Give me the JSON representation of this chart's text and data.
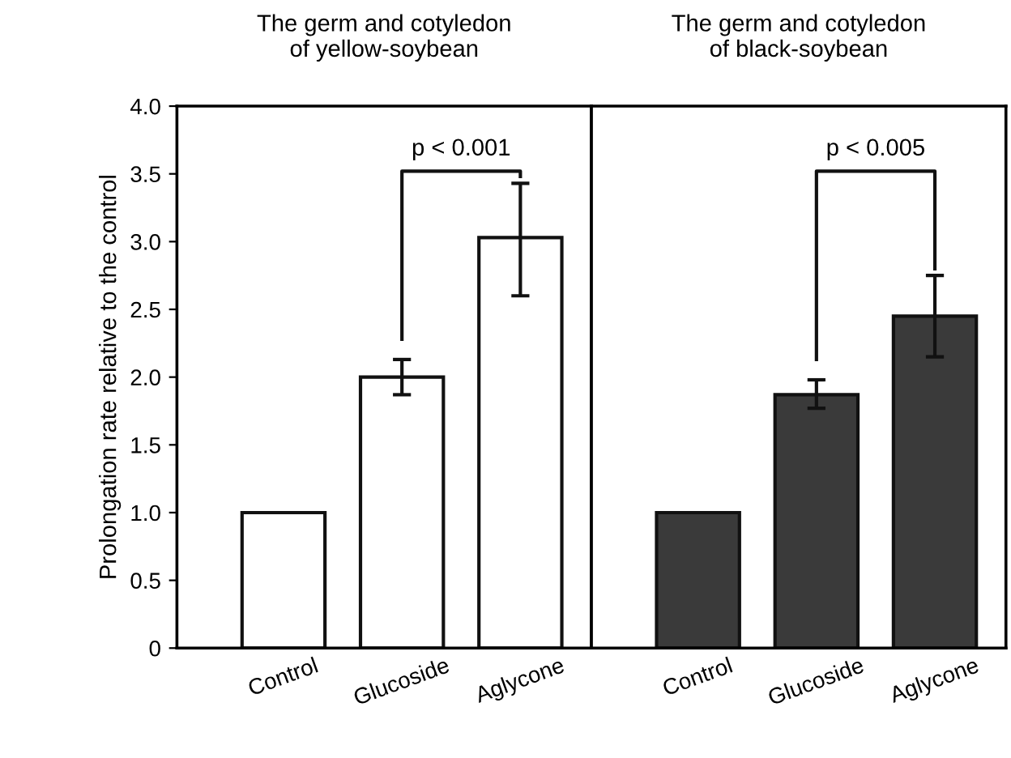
{
  "chart_data": [
    {
      "type": "bar",
      "title": "The germ and cotyledon\nof yellow-soybean",
      "ylabel": "Prolongation rate relative to the control",
      "categories": [
        "Control",
        "Glucoside",
        "Aglycone"
      ],
      "values": [
        1.0,
        2.0,
        3.03
      ],
      "errors": [
        null,
        [
          1.87,
          2.13
        ],
        [
          2.6,
          3.43
        ]
      ],
      "color": "#ffffff",
      "ylim": [
        0,
        4.0
      ],
      "yticks": [
        {
          "value": 0,
          "label": "0"
        },
        {
          "value": 0.5,
          "label": "0.5"
        },
        {
          "value": 1.0,
          "label": "1.0"
        },
        {
          "value": 1.5,
          "label": "1.5"
        },
        {
          "value": 2.0,
          "label": "2.0"
        },
        {
          "value": 2.5,
          "label": "2.5"
        },
        {
          "value": 3.0,
          "label": "3.0"
        },
        {
          "value": 3.5,
          "label": "3.5"
        },
        {
          "value": 4.0,
          "label": "4.0"
        }
      ],
      "annotations": [
        "p < 0.001"
      ]
    },
    {
      "type": "bar",
      "title": "The germ and cotyledon\nof black-soybean",
      "categories": [
        "Control",
        "Glucoside",
        "Aglycone"
      ],
      "values": [
        1.0,
        1.87,
        2.45
      ],
      "errors": [
        null,
        [
          1.77,
          1.98
        ],
        [
          2.15,
          2.75
        ]
      ],
      "color": "#3a3a3a",
      "ylim": [
        0,
        4.0
      ],
      "tick_labels": "x",
      "annotations": [
        "p < 0.005"
      ]
    }
  ]
}
